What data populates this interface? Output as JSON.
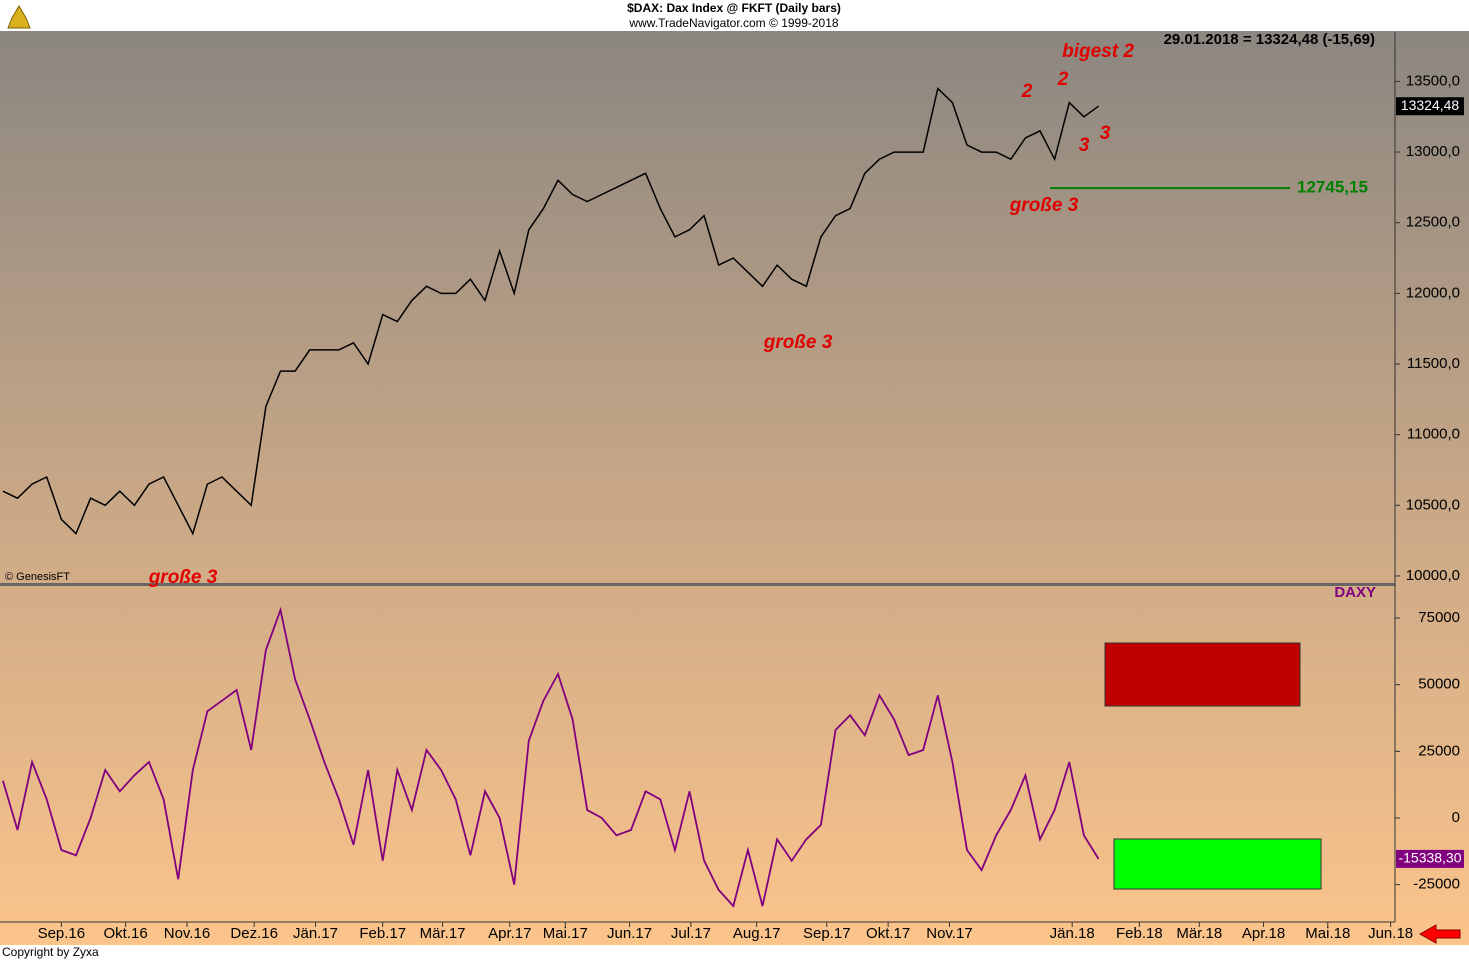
{
  "chart_data": [
    {
      "type": "line",
      "title": "$DAX:  Dax Index @ FKFT  (Daily bars)",
      "subtitle": "www.TradeNavigator.com © 1999-2018",
      "header": "29.01.2018 = 13324,48 (-15,69)",
      "source": "© GenesisFT",
      "color": "#000000",
      "x": [
        0,
        1,
        2,
        3,
        4,
        5,
        6,
        7,
        8,
        9,
        10,
        11,
        12,
        13,
        14,
        15,
        16,
        17,
        18,
        19,
        20,
        21,
        22,
        23,
        24,
        25,
        26,
        27,
        28,
        29,
        30,
        31,
        32,
        33,
        34,
        35,
        36,
        37,
        38,
        39,
        40,
        41,
        42,
        43,
        44,
        45,
        46,
        47,
        48,
        49,
        50,
        51,
        52,
        53,
        54,
        55,
        56,
        57,
        58,
        59,
        60,
        61,
        62,
        63,
        64,
        65,
        66,
        67,
        68,
        69,
        70,
        71,
        72,
        73,
        74,
        75
      ],
      "values": [
        10600,
        10550,
        10650,
        10700,
        10400,
        10300,
        10550,
        10500,
        10600,
        10500,
        10650,
        10700,
        10500,
        10300,
        10650,
        10700,
        10600,
        10500,
        11200,
        11450,
        11450,
        11600,
        11600,
        11600,
        11650,
        11500,
        11850,
        11800,
        11950,
        12050,
        12000,
        12000,
        12100,
        11950,
        12300,
        12000,
        12450,
        12600,
        12800,
        12700,
        12650,
        12700,
        12750,
        12800,
        12850,
        12600,
        12400,
        12450,
        12550,
        12200,
        12250,
        12150,
        12050,
        12200,
        12100,
        12050,
        12400,
        12550,
        12600,
        12850,
        12950,
        13000,
        13000,
        13000,
        13450,
        13350,
        13050,
        13000,
        13000,
        12950,
        13100,
        13150,
        12950,
        13350,
        13250,
        13324.48
      ],
      "last_label": {
        "value": 13324.48,
        "label": "13324,48"
      },
      "xlim": [
        -0.2,
        95.3
      ],
      "ylim": [
        9950,
        13850
      ],
      "yticks": [
        {
          "value": 10000,
          "label": "10000,0"
        },
        {
          "value": 10500,
          "label": "10500,0"
        },
        {
          "value": 11000,
          "label": "11000,0"
        },
        {
          "value": 11500,
          "label": "11500,0"
        },
        {
          "value": 12000,
          "label": "12000,0"
        },
        {
          "value": 12500,
          "label": "12500,0"
        },
        {
          "value": 13000,
          "label": "13000,0"
        },
        {
          "value": 13500,
          "label": "13500,0"
        }
      ],
      "levels": [
        {
          "value": 12745.15,
          "label": "12745,15",
          "color": "#008000"
        }
      ],
      "annotations": [
        {
          "text": "bigest 2"
        },
        {
          "text": "2"
        },
        {
          "text": "2"
        },
        {
          "text": "3"
        },
        {
          "text": "3"
        },
        {
          "text": "große 3"
        },
        {
          "text": "große 3"
        },
        {
          "text": "große 3"
        }
      ]
    },
    {
      "type": "line",
      "title": "DAXY",
      "color": "#800080",
      "footer": "Copyright by Zyxa",
      "x": [
        0,
        1,
        2,
        3,
        4,
        5,
        6,
        7,
        8,
        9,
        10,
        11,
        12,
        13,
        14,
        15,
        16,
        17,
        18,
        19,
        20,
        21,
        22,
        23,
        24,
        25,
        26,
        27,
        28,
        29,
        30,
        31,
        32,
        33,
        34,
        35,
        36,
        37,
        38,
        39,
        40,
        41,
        42,
        43,
        44,
        45,
        46,
        47,
        48,
        49,
        50,
        51,
        52,
        53,
        54,
        55,
        56,
        57,
        58,
        59,
        60,
        61,
        62,
        63,
        64,
        65,
        66,
        67,
        68,
        69,
        70,
        71,
        72,
        73,
        74,
        75
      ],
      "values": [
        14000,
        -4500,
        21000,
        7000,
        -12000,
        -14000,
        0,
        18000,
        10000,
        16000,
        21000,
        7000,
        -23000,
        18000,
        40000,
        44000,
        48000,
        25500,
        63000,
        78000,
        52000,
        37000,
        21000,
        7000,
        -10000,
        18000,
        -16000,
        18000,
        3000,
        25500,
        18000,
        7000,
        -14000,
        10000,
        0,
        -25000,
        29000,
        44000,
        54000,
        37000,
        3000,
        0,
        -6500,
        -4500,
        10000,
        7000,
        -12000,
        10000,
        -16000,
        -27000,
        -33000,
        -12000,
        -33000,
        -8000,
        -16000,
        -8000,
        -2600,
        33000,
        38500,
        31000,
        46000,
        37000,
        23600,
        25500,
        46000,
        21000,
        -12000,
        -19500,
        -6500,
        3000,
        16000,
        -8000,
        3000,
        21000,
        -6500,
        -15338.3
      ],
      "last_label": {
        "value": -15338.3,
        "label": "-15338,30"
      },
      "xlim": [
        -0.2,
        95.3
      ],
      "ylim": [
        -39000,
        87000
      ],
      "yticks": [
        -25000,
        0,
        25000,
        50000,
        75000
      ],
      "xticks": [
        {
          "value": 4.0,
          "label": "Sep.16"
        },
        {
          "value": 8.4,
          "label": "Okt.16"
        },
        {
          "value": 12.6,
          "label": "Nov.16"
        },
        {
          "value": 17.2,
          "label": "Dez.16"
        },
        {
          "value": 21.4,
          "label": "Jän.17"
        },
        {
          "value": 26.0,
          "label": "Feb.17"
        },
        {
          "value": 30.1,
          "label": "Mär.17"
        },
        {
          "value": 34.7,
          "label": "Apr.17"
        },
        {
          "value": 38.5,
          "label": "Mai.17"
        },
        {
          "value": 42.9,
          "label": "Jun.17"
        },
        {
          "value": 47.1,
          "label": "Jul.17"
        },
        {
          "value": 51.6,
          "label": "Aug.17"
        },
        {
          "value": 56.4,
          "label": "Sep.17"
        },
        {
          "value": 60.6,
          "label": "Okt.17"
        },
        {
          "value": 64.8,
          "label": "Nov.17"
        },
        {
          "value": 73.2,
          "label": "Jän.18"
        },
        {
          "value": 77.8,
          "label": "Feb.18"
        },
        {
          "value": 81.9,
          "label": "Mär.18"
        },
        {
          "value": 86.3,
          "label": "Apr.18"
        },
        {
          "value": 90.7,
          "label": "Mai.18"
        },
        {
          "value": 95.0,
          "label": "Jun.18"
        }
      ]
    }
  ]
}
